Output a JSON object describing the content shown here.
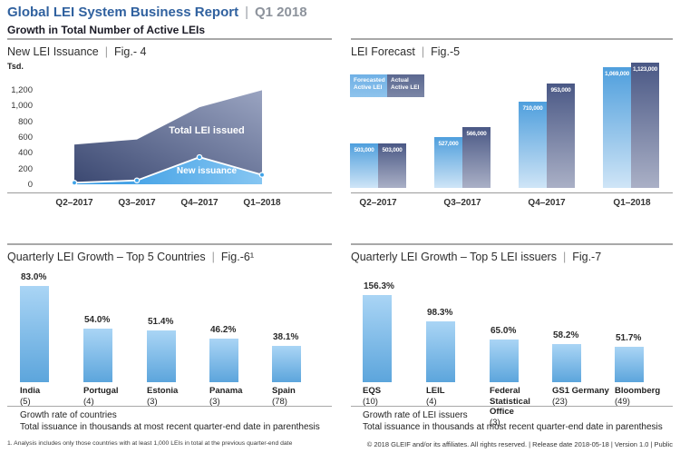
{
  "header": {
    "title": "Global LEI System Business Report",
    "period": "Q1 2018",
    "subtitle": "Growth in Total Number of Active LEIs"
  },
  "sep": "|",
  "panels": {
    "fig4": {
      "title": "New LEI Issuance",
      "fig": "Fig.- 4"
    },
    "fig5": {
      "title": "LEI Forecast",
      "fig": "Fig.-5"
    },
    "fig6": {
      "title": "Quarterly LEI Growth – Top 5 Countries",
      "fig": "Fig.-6¹",
      "caption1": "Growth rate of countries",
      "caption2": "Total issuance in thousands at most recent quarter-end date in parenthesis"
    },
    "fig7": {
      "title": "Quarterly LEI Growth – Top 5 LEI issuers",
      "fig": "Fig.-7",
      "caption1": "Growth rate of LEI issuers",
      "caption2": "Total issuance in thousands at most recent quarter-end date in parenthesis"
    }
  },
  "footnote": "1. Analysis includes only those countries with at least 1,000 LEIs in total at the previous quarter-end date",
  "footer": "© 2018 GLEIF and/or its affiliates. All rights reserved. | Release date 2018-05-18 | Version 1.0 | Public",
  "colors": {
    "header_blue": "#30619f",
    "header_gray": "#8d939c",
    "light_blue_bar": "#5ca5dc",
    "dark_slate_bar": "#4a5885",
    "area_dark": "#3b4871",
    "area_blue": "#2d95e1"
  },
  "chart_data": [
    {
      "type": "area",
      "title": "New LEI Issuance",
      "ylabel": "Tsd.",
      "x": [
        "Q2–2017",
        "Q3–2017",
        "Q4–2017",
        "Q1–2018"
      ],
      "series": [
        {
          "name": "Total LEI issued",
          "values": [
            505,
            570,
            980,
            1195
          ]
        },
        {
          "name": "New issuance",
          "values": [
            20,
            50,
            345,
            120
          ]
        }
      ],
      "ylim": [
        0,
        1200
      ],
      "yticks": [
        0,
        200,
        400,
        600,
        800,
        1000,
        1200
      ],
      "grid": false,
      "legend_position": "inline-labels"
    },
    {
      "type": "bar",
      "title": "LEI Forecast",
      "categories": [
        "Q2–2017",
        "Q3–2017",
        "Q4–2017",
        "Q1–2018"
      ],
      "series": [
        {
          "name": "Forecasted Active LEI",
          "values": [
            503000,
            527000,
            710000,
            1069000
          ]
        },
        {
          "name": "Actual Active LEI",
          "values": [
            503000,
            566000,
            953000,
            1123000
          ]
        }
      ],
      "data_labels": true,
      "legend_position": "top-left"
    },
    {
      "type": "bar",
      "title": "Quarterly LEI Growth – Top 5 Countries",
      "categories": [
        "India",
        "Portugal",
        "Estonia",
        "Panama",
        "Spain"
      ],
      "totals_thousands": [
        5,
        4,
        3,
        3,
        78
      ],
      "values": [
        83.0,
        54.0,
        51.4,
        46.2,
        38.1
      ],
      "unit": "%",
      "data_labels": true
    },
    {
      "type": "bar",
      "title": "Quarterly LEI Growth – Top 5 LEI issuers",
      "categories": [
        "EQS",
        "LEIL",
        "Federal Statistical Office",
        "GS1 Germany",
        "Bloomberg"
      ],
      "totals_thousands": [
        10,
        4,
        3,
        23,
        49
      ],
      "values": [
        156.3,
        98.3,
        65.0,
        58.2,
        51.7
      ],
      "unit": "%",
      "data_labels": true
    }
  ]
}
